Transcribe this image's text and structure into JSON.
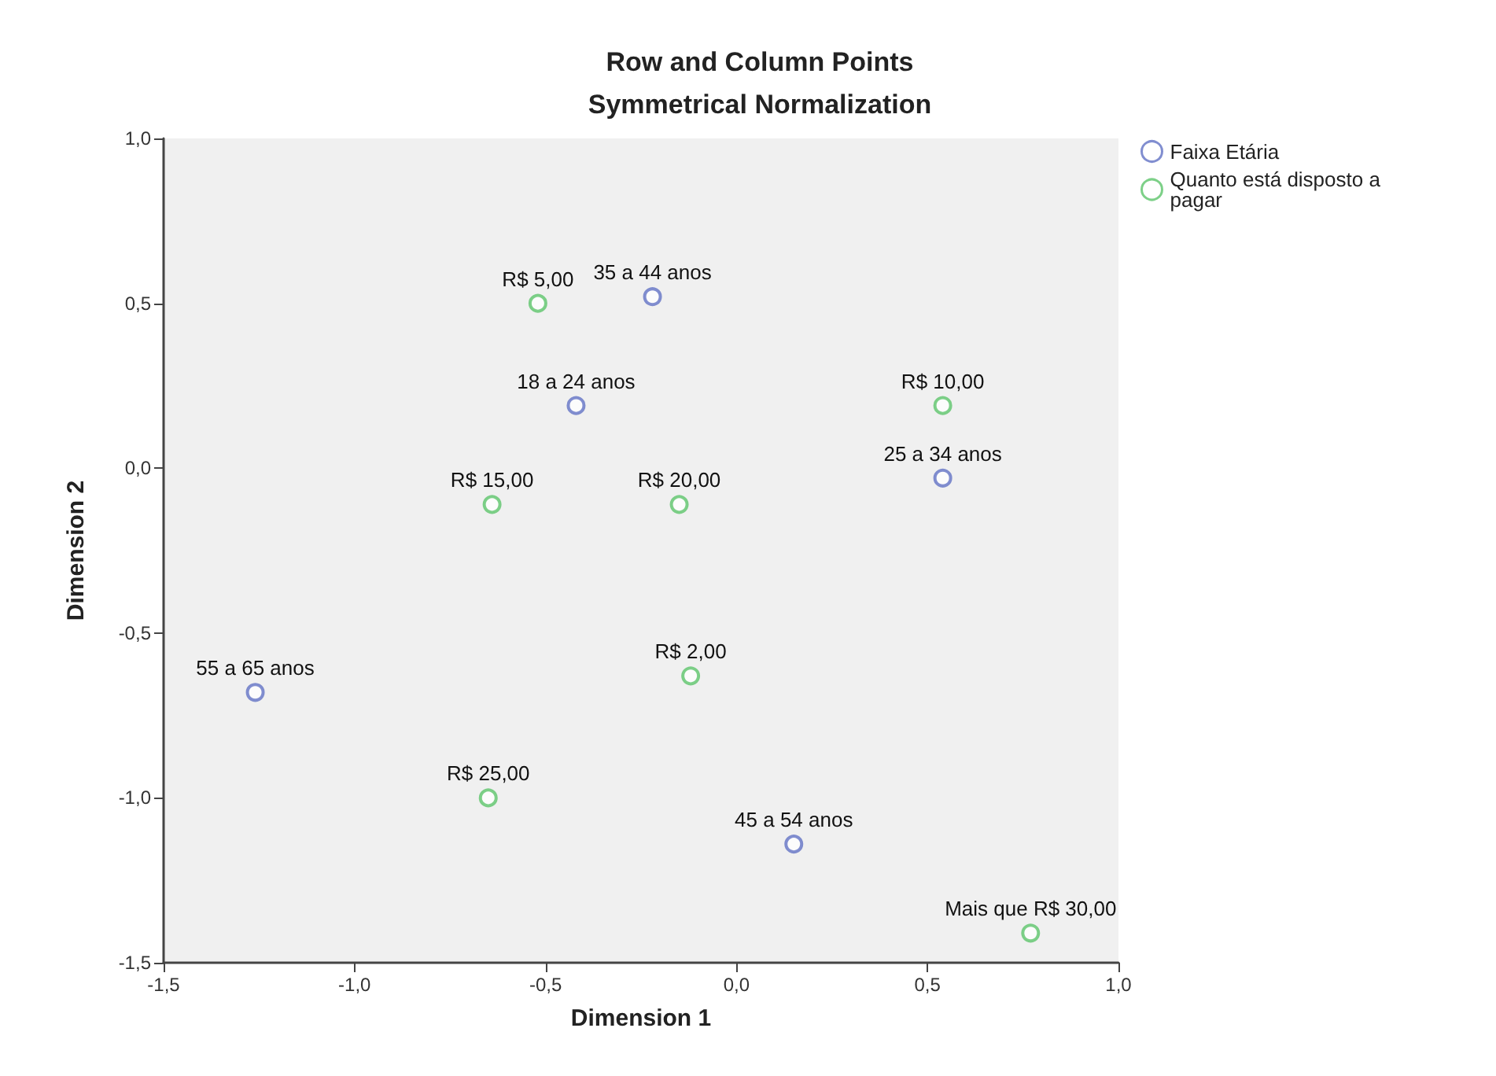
{
  "chart_data": {
    "type": "scatter",
    "title": "Row and Column Points",
    "subtitle": "Symmetrical Normalization",
    "xlabel": "Dimension 1",
    "ylabel": "Dimension 2",
    "series": [
      {
        "name": "Faixa Etária",
        "color": "#6272c4",
        "x": [
          -0.22,
          -0.42,
          0.54,
          -1.26,
          0.15
        ],
        "values": [
          0.52,
          0.19,
          -0.03,
          -0.68,
          -1.14
        ]
      },
      {
        "name": "Quanto está disposto a pagar",
        "color": "#5cc46a",
        "x": [
          -0.52,
          0.54,
          -0.64,
          -0.15,
          -0.12,
          -0.65,
          0.77
        ],
        "values": [
          0.5,
          0.19,
          -0.11,
          -0.11,
          -0.63,
          -1.0,
          -1.41
        ]
      }
    ],
    "annotations": [
      {
        "text": "35 a 44 anos",
        "x": -0.22,
        "y": 0.52
      },
      {
        "text": "18 a 24 anos",
        "x": -0.42,
        "y": 0.19
      },
      {
        "text": "25 a 34 anos",
        "x": 0.54,
        "y": -0.03
      },
      {
        "text": "55 a 65 anos",
        "x": -1.26,
        "y": -0.68
      },
      {
        "text": "45 a 54 anos",
        "x": 0.15,
        "y": -1.14
      },
      {
        "text": "R$ 5,00",
        "x": -0.52,
        "y": 0.5
      },
      {
        "text": "R$ 10,00",
        "x": 0.54,
        "y": 0.19
      },
      {
        "text": "R$ 15,00",
        "x": -0.64,
        "y": -0.11
      },
      {
        "text": "R$ 20,00",
        "x": -0.15,
        "y": -0.11
      },
      {
        "text": "R$ 2,00",
        "x": -0.12,
        "y": -0.63
      },
      {
        "text": "R$ 25,00",
        "x": -0.65,
        "y": -1.0
      },
      {
        "text": "Mais que R$ 30,00",
        "x": 0.77,
        "y": -1.41
      }
    ],
    "xlim": [
      -1.5,
      1.0
    ],
    "xticks": [
      {
        "value": -1.5,
        "label": "-1,5"
      },
      {
        "value": -1.0,
        "label": "-1,0"
      },
      {
        "value": -0.5,
        "label": "-0,5"
      },
      {
        "value": 0,
        "label": "0,0"
      },
      {
        "value": 0.5,
        "label": "0,5"
      },
      {
        "value": 1.0,
        "label": "1,0"
      }
    ],
    "ylim": [
      -1.5,
      1.0
    ],
    "yticks": [
      {
        "value": -1.5,
        "label": "-1,5"
      },
      {
        "value": -1.0,
        "label": "-1,0"
      },
      {
        "value": -0.5,
        "label": "-0,5"
      },
      {
        "value": 0,
        "label": "0,0"
      },
      {
        "value": 0.5,
        "label": "0,5"
      },
      {
        "value": 1.0,
        "label": "1,0"
      }
    ],
    "grid": false,
    "legend": "top right",
    "marker": "circle"
  }
}
